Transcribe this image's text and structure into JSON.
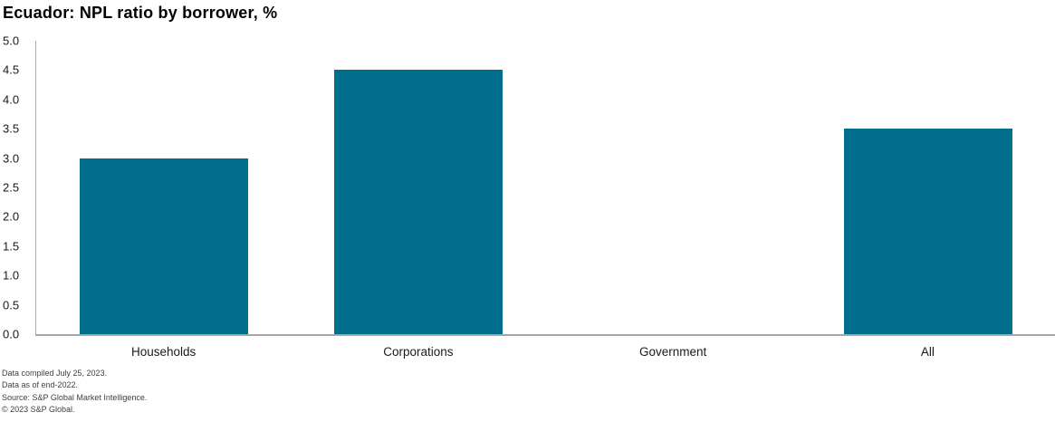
{
  "page": {
    "background": "#ffffff"
  },
  "chart_data": {
    "type": "bar",
    "title": "Ecuador: NPL ratio by borrower, %",
    "categories": [
      "Households",
      "Corporations",
      "Government",
      "All"
    ],
    "values": [
      3.0,
      4.5,
      0.0,
      3.5
    ],
    "xlabel": "",
    "ylabel": "",
    "ylim": [
      0,
      5
    ],
    "ytick_step": 0.5,
    "ytick_decimals": 1,
    "grid": false,
    "legend_position": "none",
    "bar_color": "#006e8c",
    "axis_line_color": "#a6a6a6"
  },
  "footnotes": {
    "lines": [
      "Data compiled July 25, 2023.",
      "Data as of end-2022.",
      "Source: S&P Global Market Intelligence.",
      "© 2023 S&P Global."
    ]
  }
}
